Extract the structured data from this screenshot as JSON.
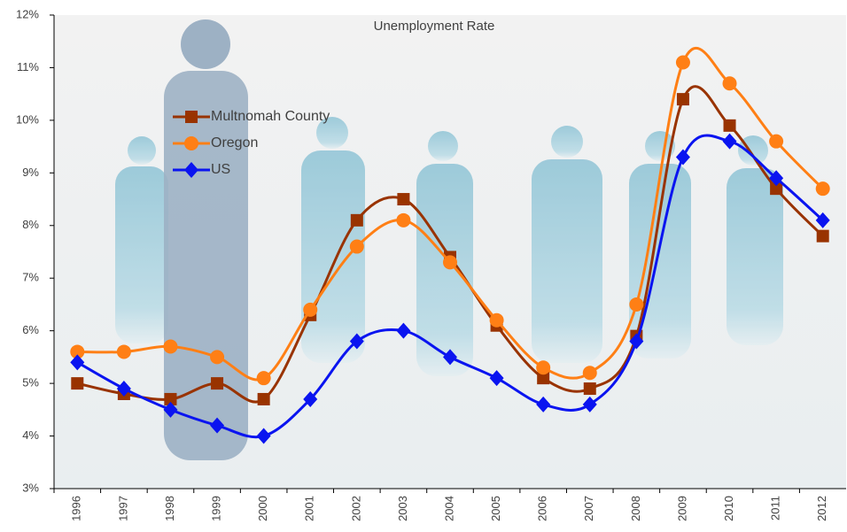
{
  "chart_data": {
    "type": "line",
    "title": "Unemployment Rate",
    "smooth": true,
    "legend": "upper left",
    "grid": false,
    "categories": [
      "1996",
      "1997",
      "1998",
      "1999",
      "2000",
      "2001",
      "2002",
      "2003",
      "2004",
      "2005",
      "2006",
      "2007",
      "2008",
      "2009",
      "2010",
      "2011",
      "2012"
    ],
    "series": [
      {
        "name": "Multnomah County",
        "color": "#993300",
        "marker": "square",
        "values": [
          5.0,
          4.8,
          4.7,
          5.0,
          4.7,
          6.3,
          8.1,
          8.5,
          7.4,
          6.1,
          5.1,
          4.9,
          5.9,
          10.4,
          9.9,
          8.7,
          7.8
        ]
      },
      {
        "name": "Oregon",
        "color": "#ff7f15",
        "marker": "circle",
        "values": [
          5.6,
          5.6,
          5.7,
          5.5,
          5.1,
          6.4,
          7.6,
          8.1,
          7.3,
          6.2,
          5.3,
          5.2,
          6.5,
          11.1,
          10.7,
          9.6,
          8.7
        ]
      },
      {
        "name": "US",
        "color": "#0a14f0",
        "marker": "diamond",
        "values": [
          5.4,
          4.9,
          4.5,
          4.2,
          4.0,
          4.7,
          5.8,
          6.0,
          5.5,
          5.1,
          4.6,
          4.6,
          5.8,
          9.3,
          9.6,
          8.9,
          8.1
        ]
      }
    ],
    "ylim": [
      3,
      12
    ],
    "yticks": [
      {
        "value": 3,
        "label": "3%"
      },
      {
        "value": 4,
        "label": "4%"
      },
      {
        "value": 5,
        "label": "5%"
      },
      {
        "value": 6,
        "label": "6%"
      },
      {
        "value": 7,
        "label": "7%"
      },
      {
        "value": 8,
        "label": "8%"
      },
      {
        "value": 9,
        "label": "9%"
      },
      {
        "value": 10,
        "label": "10%"
      },
      {
        "value": 11,
        "label": "11%"
      },
      {
        "value": 12,
        "label": "12%"
      }
    ]
  }
}
